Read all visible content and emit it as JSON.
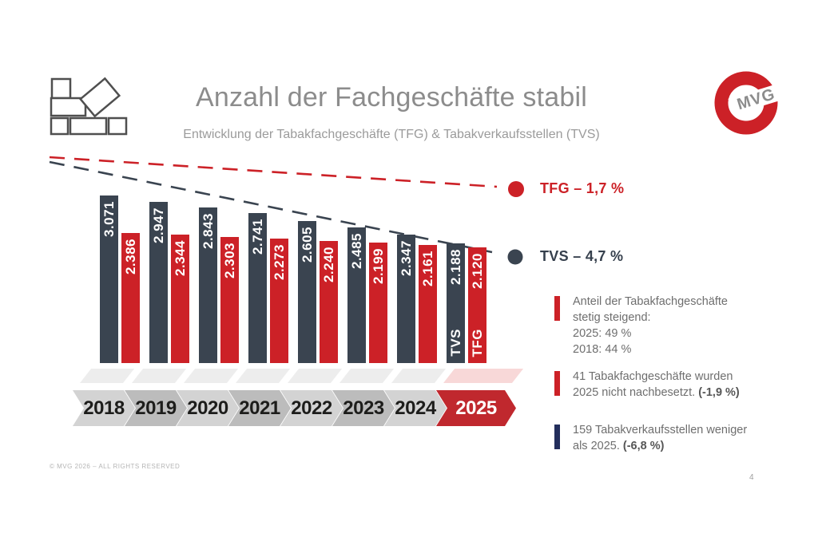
{
  "slide": {
    "title": "Anzahl der Fachgeschäfte stabil",
    "subtitle": "Entwicklung der Tabakfachgeschäfte (TFG) & Tabakverkaufsstellen (TVS)",
    "logo_text": "MVG",
    "copyright": "© MVG 2026 – ALL RIGHTS RESERVED",
    "page_number": "4"
  },
  "style": {
    "tvs_color": "#3a4450",
    "tfg_color": "#cc2127",
    "insight_navy": "#232e5c",
    "year_inactive_colors": [
      "#d3d3d3",
      "#bcbcbc"
    ],
    "year_active_color": "#c0282e",
    "year_text_color": "#1d1d1b",
    "year_active_text_color": "#ffffff",
    "shadow_color": "#ededed",
    "shadow_active_color": "#f8d8d8",
    "title_color": "#8c8c8c"
  },
  "insights": [
    {
      "line1": "Anteil der Tabakfachgeschäfte",
      "line2": "stetig steigend:",
      "line3": "2025: 49 %",
      "line4": "2018: 44 %",
      "bold": ""
    },
    {
      "line1": "41 Tabakfachgeschäfte wurden",
      "line2": "2025 nicht nachbesetzt.",
      "bold": " (-1,9 %)"
    },
    {
      "line1": "159 Tabakverkaufsstellen weniger",
      "line2": "als 2025.",
      "bold": " (-6,8 %)"
    }
  ],
  "chart_data": {
    "type": "bar",
    "title": "Anzahl der Fachgeschäfte stabil",
    "subtitle": "Entwicklung der Tabakfachgeschäfte (TFG) & Tabakverkaufsstellen (TVS)",
    "categories": [
      "2018",
      "2019",
      "2020",
      "2021",
      "2022",
      "2023",
      "2024",
      "2025"
    ],
    "series": [
      {
        "name": "TVS",
        "color": "#3a4450",
        "values": [
          3071,
          2947,
          2843,
          2741,
          2605,
          2485,
          2347,
          2188
        ],
        "value_labels": [
          "3.071",
          "2.947",
          "2.843",
          "2.741",
          "2.605",
          "2.485",
          "2.347",
          "2.188"
        ],
        "trend": "TVS – 4,7 %"
      },
      {
        "name": "TFG",
        "color": "#cc2127",
        "values": [
          2386,
          2344,
          2303,
          2273,
          2240,
          2199,
          2161,
          2120
        ],
        "value_labels": [
          "2.386",
          "2.344",
          "2.303",
          "2.273",
          "2.240",
          "2.199",
          "2.161",
          "2.120"
        ],
        "trend": "TFG – 1,7 %"
      }
    ],
    "ylim": [
      0,
      3200
    ],
    "grid": false,
    "legend_position": "right",
    "value_labels_inside_bars": true,
    "highlighted_category": "2025"
  }
}
